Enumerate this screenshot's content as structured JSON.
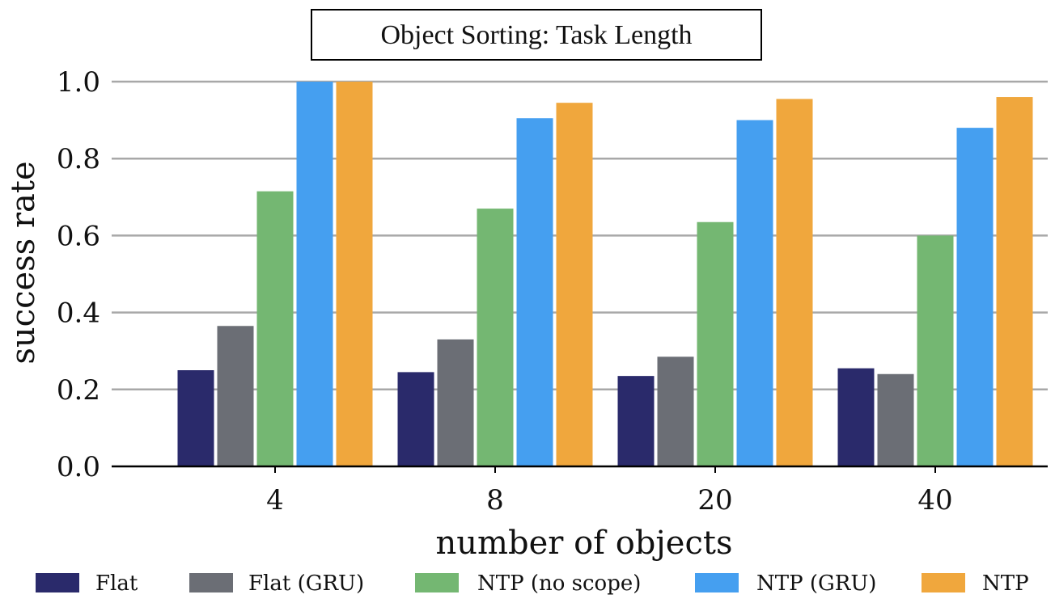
{
  "chart_data": {
    "type": "bar",
    "title": "Object Sorting: Task Length",
    "xlabel": "number of objects",
    "ylabel": "success rate",
    "categories": [
      "4",
      "8",
      "20",
      "40"
    ],
    "ylim": [
      0,
      1.0
    ],
    "yticks": [
      "0.0",
      "0.2",
      "0.4",
      "0.6",
      "0.8",
      "1.0"
    ],
    "grid": "horizontal",
    "legend_position": "bottom",
    "series": [
      {
        "name": "Flat",
        "color": "#2a2a6b",
        "values": [
          0.25,
          0.245,
          0.235,
          0.255
        ]
      },
      {
        "name": "Flat (GRU)",
        "color": "#6b6e75",
        "values": [
          0.365,
          0.33,
          0.285,
          0.24
        ]
      },
      {
        "name": "NTP (no scope)",
        "color": "#74b772",
        "values": [
          0.715,
          0.67,
          0.635,
          0.6
        ]
      },
      {
        "name": "NTP (GRU)",
        "color": "#459ff0",
        "values": [
          1.0,
          0.905,
          0.9,
          0.88
        ]
      },
      {
        "name": "NTP",
        "color": "#f0a73d",
        "values": [
          1.0,
          0.945,
          0.955,
          0.96
        ]
      }
    ]
  }
}
